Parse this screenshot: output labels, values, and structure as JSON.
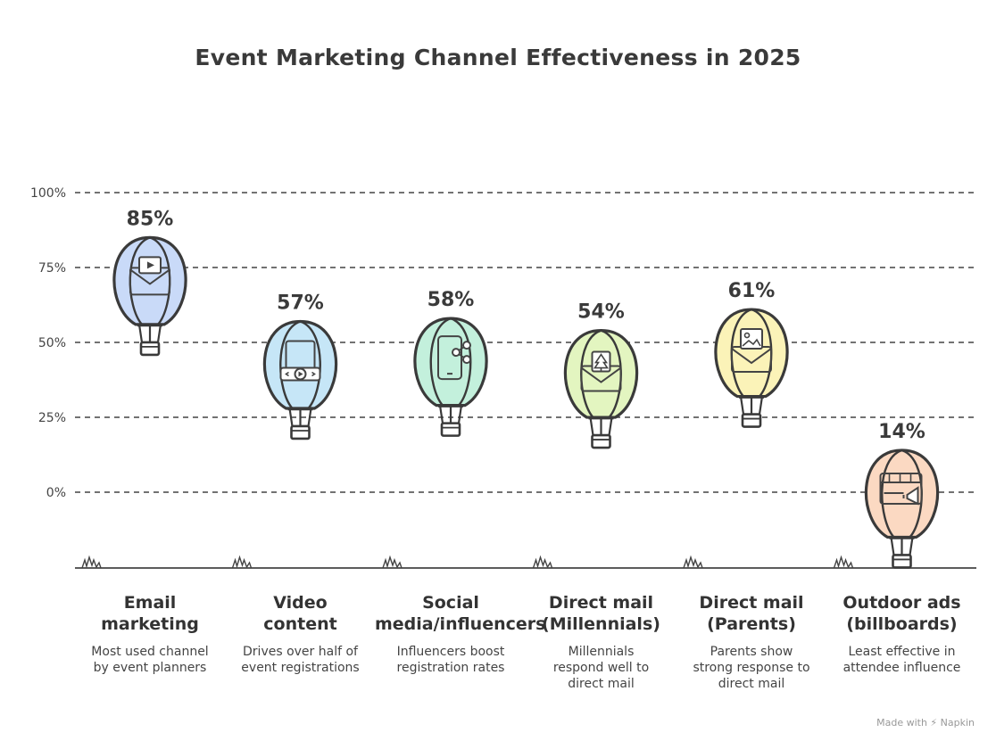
{
  "chart_data": {
    "type": "bar",
    "title": "Event Marketing Channel Effectiveness in 2025",
    "categories": [
      "Email\nmarketing",
      "Video\ncontent",
      "Social\nmedia/influencers",
      "Direct mail\n(Millennials)",
      "Direct mail\n(Parents)",
      "Outdoor ads\n(billboards)"
    ],
    "descriptions": [
      "Most used channel\nby event planners",
      "Drives over half of\nevent registrations",
      "Influencers boost\nregistration rates",
      "Millennials\nrespond well to\ndirect mail",
      "Parents show\nstrong response to\ndirect mail",
      "Least effective in\nattendee influence"
    ],
    "values": [
      85,
      57,
      58,
      54,
      61,
      14
    ],
    "value_labels": [
      "85%",
      "57%",
      "58%",
      "54%",
      "61%",
      "14%"
    ],
    "icons": [
      "email-video-icon",
      "video-player-icon",
      "smartphone-share-icon",
      "mail-tree-icon",
      "mail-image-icon",
      "billboard-megaphone-icon"
    ],
    "colors": [
      "#c9daf8",
      "#c6e6f7",
      "#c3f0dc",
      "#e3f5c0",
      "#fbf3b8",
      "#fbd9c2"
    ],
    "yticks": [
      0,
      25,
      50,
      75,
      100
    ],
    "ytick_labels": [
      "0%",
      "25%",
      "50%",
      "75%",
      "100%"
    ],
    "ylim": [
      0,
      100
    ],
    "grid": true,
    "legend": "none"
  },
  "watermark": "Made with ⚡ Napkin"
}
